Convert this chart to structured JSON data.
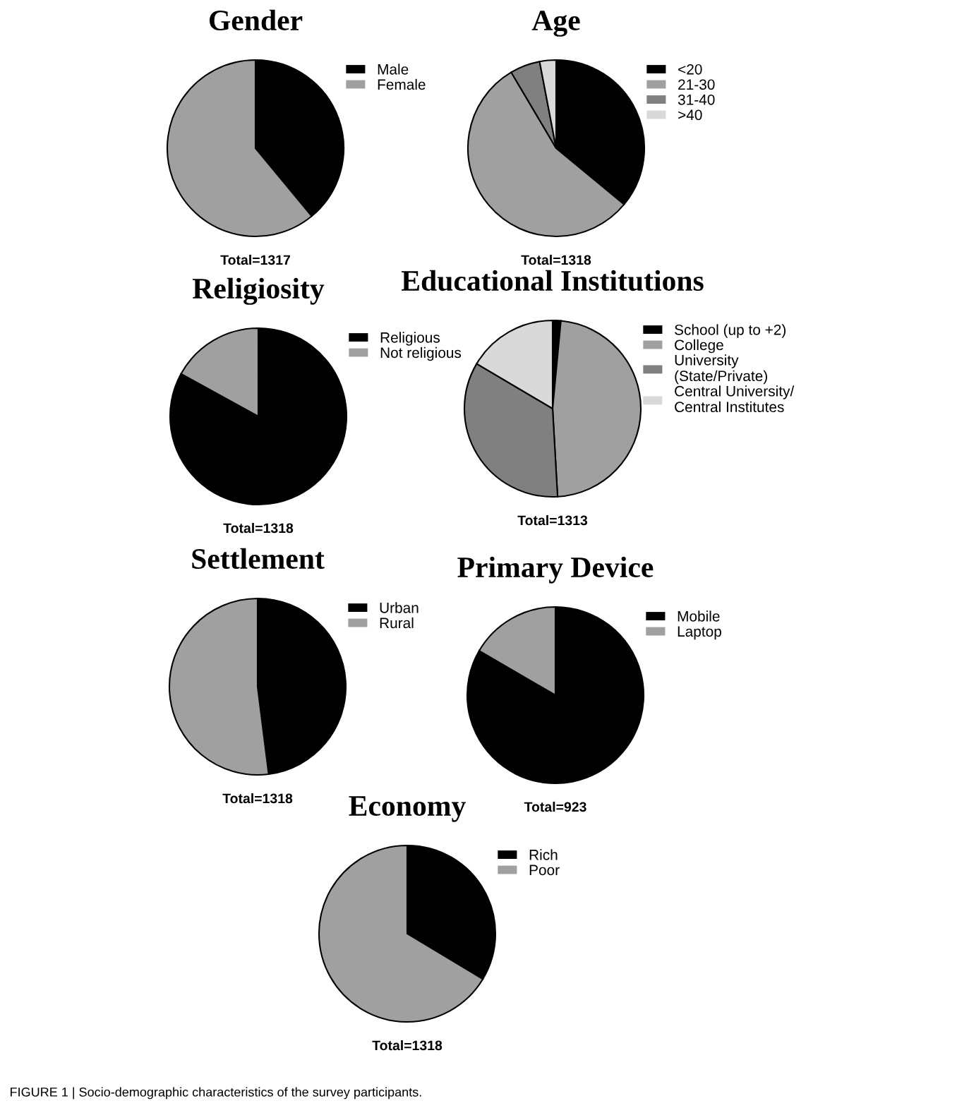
{
  "chart_data": [
    {
      "type": "pie",
      "title": "Gender",
      "categories": [
        "Male",
        "Female"
      ],
      "values": [
        39,
        61
      ],
      "colors": [
        "#000000",
        "#a0a0a0"
      ],
      "legend": "top right",
      "annotations": [
        "Total=1317"
      ]
    },
    {
      "type": "pie",
      "title": "Age",
      "categories": [
        "<20",
        "21-30",
        "31-40",
        ">40"
      ],
      "values": [
        36,
        55.5,
        5.5,
        3
      ],
      "colors": [
        "#000000",
        "#a0a0a0",
        "#808080",
        "#d9d9d9"
      ],
      "legend": "top right",
      "annotations": [
        "Total=1318"
      ]
    },
    {
      "type": "pie",
      "title": "Religiosity",
      "categories": [
        "Religious",
        "Not religious"
      ],
      "values": [
        83,
        17
      ],
      "colors": [
        "#000000",
        "#a0a0a0"
      ],
      "legend": "top right",
      "annotations": [
        "Total=1318"
      ]
    },
    {
      "type": "pie",
      "title": "Educational Institutions",
      "categories": [
        "School (up to +2)",
        "College",
        "University\n(State/Private)",
        "Central University/\nCentral Institutes"
      ],
      "values": [
        1.5,
        47.6,
        34.4,
        16.5
      ],
      "colors": [
        "#000000",
        "#a0a0a0",
        "#808080",
        "#d9d9d9"
      ],
      "legend": "top right",
      "annotations": [
        "Total=1313"
      ]
    },
    {
      "type": "pie",
      "title": "Settlement",
      "categories": [
        "Urban",
        "Rural"
      ],
      "values": [
        48,
        52
      ],
      "colors": [
        "#000000",
        "#a0a0a0"
      ],
      "legend": "top right",
      "annotations": [
        "Total=1318"
      ]
    },
    {
      "type": "pie",
      "title": "Primary Device",
      "categories": [
        "Mobile",
        "Laptop"
      ],
      "values": [
        83.4,
        16.6
      ],
      "colors": [
        "#000000",
        "#a0a0a0"
      ],
      "legend": "top right",
      "annotations": [
        "Total=923"
      ]
    },
    {
      "type": "pie",
      "title": "Economy",
      "categories": [
        "Rich",
        "Poor"
      ],
      "values": [
        33.6,
        66.4
      ],
      "colors": [
        "#000000",
        "#a0a0a0"
      ],
      "legend": "top right",
      "annotations": [
        "Total=1318",
        "FIGURE 1 | Socio-demographic characteristics of the survey participants."
      ]
    }
  ]
}
